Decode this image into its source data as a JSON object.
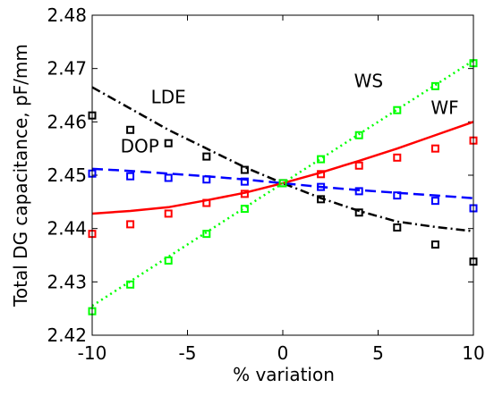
{
  "chart_data": {
    "type": "line",
    "x_label": "% variation",
    "y_label": "Total DG capacitance, pF/mm",
    "x": [
      -10,
      -8,
      -6,
      -4,
      -2,
      0,
      2,
      4,
      6,
      8,
      10
    ],
    "xlim": [
      -10,
      10
    ],
    "xticks": [
      -10,
      -5,
      0,
      5,
      10
    ],
    "ylim": [
      2.42,
      2.48
    ],
    "yticks": [
      2.42,
      2.43,
      2.44,
      2.45,
      2.46,
      2.47,
      2.48
    ],
    "series": [
      {
        "name": "LDE",
        "color": "#000000",
        "dash": "dash-dot",
        "values": [
          2.4665,
          2.4625,
          2.4585,
          2.455,
          2.4515,
          2.4485,
          2.4457,
          2.4433,
          2.4413,
          2.4403,
          2.4395
        ],
        "marker_values": [
          2.4612,
          2.4585,
          2.456,
          2.4535,
          2.451,
          2.4485,
          2.4455,
          2.443,
          2.4402,
          2.437,
          2.4338
        ]
      },
      {
        "name": "DOP",
        "color": "#0000ff",
        "dash": "dashed",
        "values": [
          2.4512,
          2.4508,
          2.4503,
          2.4498,
          2.4492,
          2.4485,
          2.4478,
          2.4472,
          2.4467,
          2.4462,
          2.4457
        ],
        "marker_values": [
          2.4503,
          2.4498,
          2.4495,
          2.4492,
          2.4488,
          2.4485,
          2.4478,
          2.447,
          2.4462,
          2.4452,
          2.4438
        ]
      },
      {
        "name": "WF",
        "color": "#ff0000",
        "dash": "solid",
        "values": [
          2.4428,
          2.4433,
          2.444,
          2.4453,
          2.4467,
          2.4485,
          2.4505,
          2.4527,
          2.455,
          2.4575,
          2.46
        ],
        "marker_values": [
          2.439,
          2.4408,
          2.4428,
          2.4448,
          2.4465,
          2.4485,
          2.4502,
          2.4518,
          2.4533,
          2.455,
          2.4565
        ]
      },
      {
        "name": "WS",
        "color": "#00ff00",
        "dash": "dotted",
        "values": [
          2.4255,
          2.4301,
          2.4347,
          2.4393,
          2.4439,
          2.4485,
          2.4531,
          2.4577,
          2.4623,
          2.4669,
          2.4715
        ],
        "marker_values": [
          2.4245,
          2.4295,
          2.434,
          2.439,
          2.4437,
          2.4485,
          2.453,
          2.4575,
          2.4622,
          2.4667,
          2.471
        ]
      }
    ]
  }
}
